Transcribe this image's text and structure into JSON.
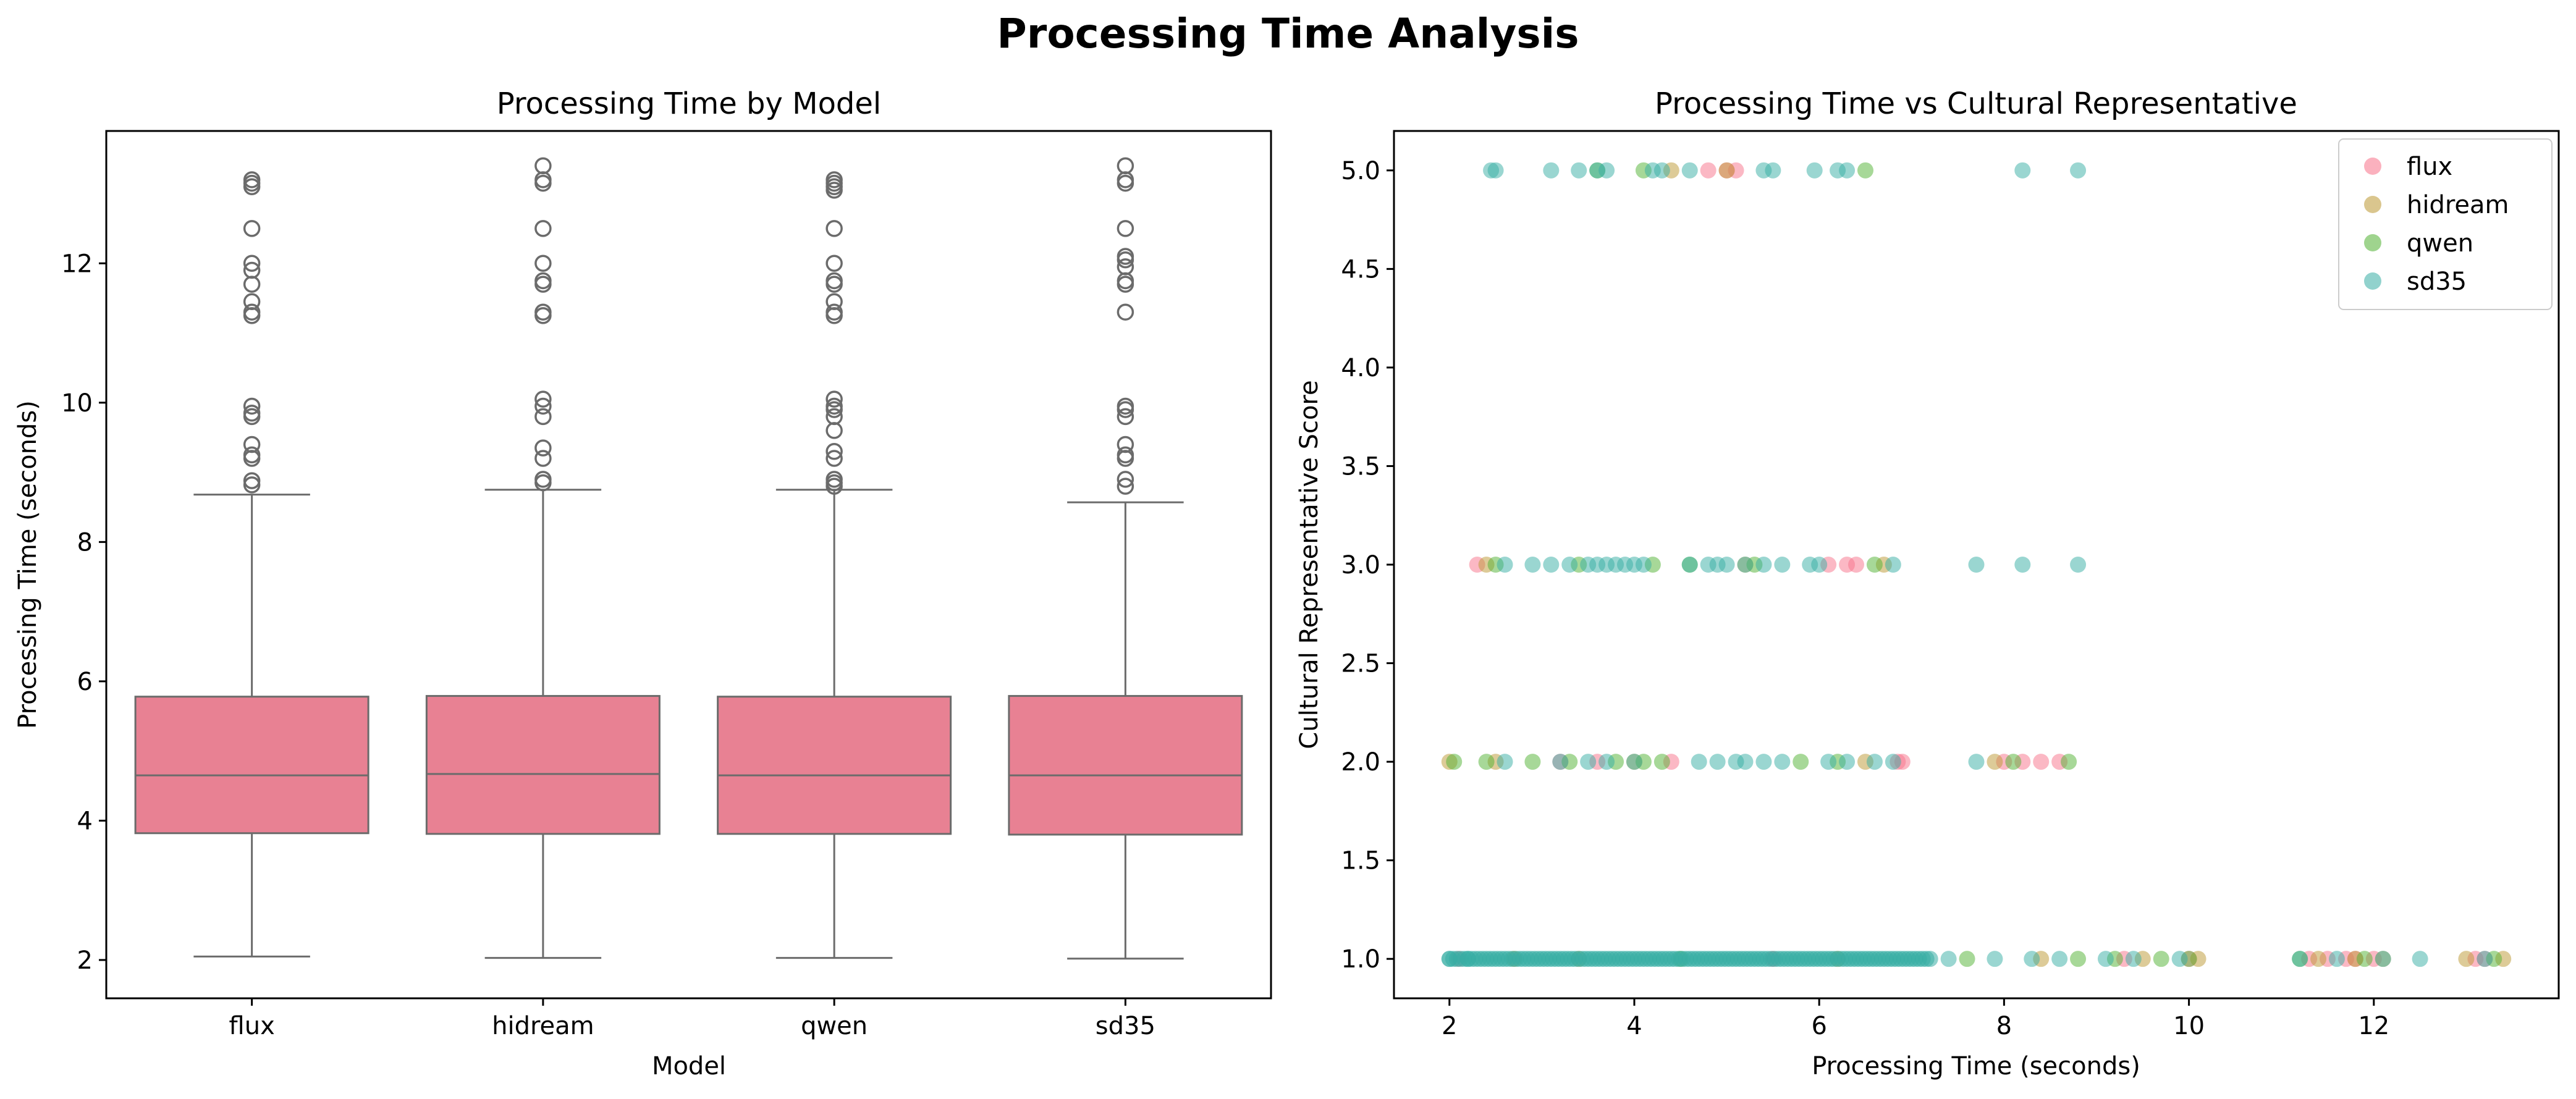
{
  "suptitle": "Processing Time Analysis",
  "colors": {
    "box_fill": "#e88193",
    "box_line": "#6b6b6b",
    "flux": "#f77189",
    "hidream": "#bb9832",
    "qwen": "#50b131",
    "sd35": "#36ada4"
  },
  "chart_data": [
    {
      "type": "box",
      "title": "Processing Time by Model",
      "xlabel": "Model",
      "ylabel": "Processing Time (seconds)",
      "categories": [
        "flux",
        "hidream",
        "qwen",
        "sd35"
      ],
      "ylim": [
        1.45,
        13.9
      ],
      "yticks": [
        2,
        4,
        6,
        8,
        10,
        12
      ],
      "grid": false,
      "boxes": [
        {
          "name": "flux",
          "whisker_low": 2.05,
          "q1": 3.82,
          "median": 4.65,
          "q3": 5.78,
          "whisker_high": 8.68,
          "outliers": [
            8.82,
            8.88,
            9.2,
            9.25,
            9.4,
            9.8,
            9.85,
            9.95,
            11.25,
            11.3,
            11.45,
            11.7,
            11.9,
            12.0,
            12.5,
            13.1,
            13.15,
            13.2
          ]
        },
        {
          "name": "hidream",
          "whisker_low": 2.03,
          "q1": 3.81,
          "median": 4.67,
          "q3": 5.79,
          "whisker_high": 8.75,
          "outliers": [
            8.85,
            8.9,
            9.2,
            9.35,
            9.8,
            9.95,
            10.05,
            11.25,
            11.3,
            11.7,
            11.75,
            12.0,
            12.5,
            13.15,
            13.2,
            13.4
          ]
        },
        {
          "name": "qwen",
          "whisker_low": 2.03,
          "q1": 3.81,
          "median": 4.65,
          "q3": 5.78,
          "whisker_high": 8.75,
          "outliers": [
            8.8,
            8.85,
            8.9,
            9.2,
            9.3,
            9.6,
            9.8,
            9.9,
            9.95,
            10.05,
            11.25,
            11.3,
            11.45,
            11.7,
            11.75,
            12.0,
            12.5,
            13.05,
            13.1,
            13.15,
            13.2
          ]
        },
        {
          "name": "sd35",
          "whisker_low": 2.02,
          "q1": 3.8,
          "median": 4.65,
          "q3": 5.79,
          "whisker_high": 8.57,
          "outliers": [
            8.8,
            8.9,
            9.2,
            9.25,
            9.4,
            9.8,
            9.9,
            9.95,
            11.3,
            11.7,
            11.75,
            11.95,
            12.05,
            12.1,
            12.5,
            13.15,
            13.2,
            13.4
          ]
        }
      ]
    },
    {
      "type": "scatter",
      "title": "Processing Time vs Cultural Representative",
      "xlabel": "Processing Time (seconds)",
      "ylabel": "Cultural Representative Score",
      "xlim": [
        1.4,
        14.0
      ],
      "ylim": [
        0.8,
        5.2
      ],
      "xticks": [
        2,
        4,
        6,
        8,
        10,
        12
      ],
      "yticks": [
        1.0,
        1.5,
        2.0,
        2.5,
        3.0,
        3.5,
        4.0,
        4.5,
        5.0
      ],
      "legend": "top-right",
      "grid": false,
      "series": [
        {
          "name": "flux",
          "color": "#f77189",
          "points": [
            [
              2.3,
              3.0
            ],
            [
              4.8,
              5.0
            ],
            [
              5.0,
              5.0
            ],
            [
              5.1,
              5.0
            ],
            [
              6.1,
              3.0
            ],
            [
              6.3,
              3.0
            ],
            [
              6.4,
              3.0
            ],
            [
              6.9,
              2.0
            ],
            [
              6.85,
              2.0
            ],
            [
              8.0,
              2.0
            ],
            [
              8.2,
              2.0
            ],
            [
              8.4,
              2.0
            ],
            [
              8.6,
              2.0
            ],
            [
              3.2,
              2.0
            ],
            [
              3.6,
              2.0
            ],
            [
              4.4,
              2.0
            ],
            [
              11.3,
              1.0
            ],
            [
              11.5,
              1.0
            ],
            [
              11.7,
              1.0
            ],
            [
              11.8,
              1.0
            ],
            [
              12.0,
              1.0
            ],
            [
              13.1,
              1.0
            ],
            [
              13.2,
              1.0
            ],
            [
              2.1,
              1.0
            ],
            [
              5.5,
              1.0
            ],
            [
              9.3,
              1.0
            ],
            [
              10.0,
              1.0
            ]
          ]
        },
        {
          "name": "hidream",
          "color": "#bb9832",
          "points": [
            [
              2.4,
              3.0
            ],
            [
              4.4,
              5.0
            ],
            [
              5.0,
              5.0
            ],
            [
              6.7,
              3.0
            ],
            [
              2.0,
              2.0
            ],
            [
              2.5,
              2.0
            ],
            [
              4.0,
              2.0
            ],
            [
              6.5,
              2.0
            ],
            [
              7.9,
              2.0
            ],
            [
              5.2,
              3.0
            ],
            [
              2.7,
              1.0
            ],
            [
              3.4,
              1.0
            ],
            [
              6.2,
              1.0
            ],
            [
              8.4,
              1.0
            ],
            [
              9.5,
              1.0
            ],
            [
              10.1,
              1.0
            ],
            [
              11.4,
              1.0
            ],
            [
              11.8,
              1.0
            ],
            [
              12.1,
              1.0
            ],
            [
              13.0,
              1.0
            ],
            [
              13.4,
              1.0
            ]
          ]
        },
        {
          "name": "qwen",
          "color": "#50b131",
          "points": [
            [
              2.05,
              2.0
            ],
            [
              2.4,
              2.0
            ],
            [
              2.9,
              2.0
            ],
            [
              3.3,
              2.0
            ],
            [
              3.8,
              2.0
            ],
            [
              4.1,
              2.0
            ],
            [
              4.3,
              2.0
            ],
            [
              5.8,
              2.0
            ],
            [
              6.2,
              2.0
            ],
            [
              8.1,
              2.0
            ],
            [
              8.7,
              2.0
            ],
            [
              2.5,
              3.0
            ],
            [
              3.4,
              3.0
            ],
            [
              4.2,
              3.0
            ],
            [
              4.6,
              3.0
            ],
            [
              5.3,
              3.0
            ],
            [
              6.6,
              3.0
            ],
            [
              3.6,
              5.0
            ],
            [
              4.1,
              5.0
            ],
            [
              6.5,
              5.0
            ],
            [
              4.5,
              1.0
            ],
            [
              7.6,
              1.0
            ],
            [
              8.8,
              1.0
            ],
            [
              9.2,
              1.0
            ],
            [
              9.7,
              1.0
            ],
            [
              10.0,
              1.0
            ],
            [
              11.2,
              1.0
            ],
            [
              11.9,
              1.0
            ],
            [
              13.3,
              1.0
            ]
          ]
        },
        {
          "name": "sd35",
          "color": "#36ada4",
          "points": [
            [
              2.5,
              5.0
            ],
            [
              2.45,
              5.0
            ],
            [
              3.1,
              5.0
            ],
            [
              3.4,
              5.0
            ],
            [
              3.6,
              5.0
            ],
            [
              3.7,
              5.0
            ],
            [
              4.2,
              5.0
            ],
            [
              4.3,
              5.0
            ],
            [
              4.6,
              5.0
            ],
            [
              5.4,
              5.0
            ],
            [
              5.5,
              5.0
            ],
            [
              5.95,
              5.0
            ],
            [
              6.2,
              5.0
            ],
            [
              6.3,
              5.0
            ],
            [
              8.2,
              5.0
            ],
            [
              8.8,
              5.0
            ],
            [
              2.6,
              3.0
            ],
            [
              2.9,
              3.0
            ],
            [
              3.1,
              3.0
            ],
            [
              3.3,
              3.0
            ],
            [
              3.5,
              3.0
            ],
            [
              3.6,
              3.0
            ],
            [
              3.7,
              3.0
            ],
            [
              3.8,
              3.0
            ],
            [
              3.9,
              3.0
            ],
            [
              4.0,
              3.0
            ],
            [
              4.1,
              3.0
            ],
            [
              4.6,
              3.0
            ],
            [
              4.8,
              3.0
            ],
            [
              4.9,
              3.0
            ],
            [
              5.0,
              3.0
            ],
            [
              5.2,
              3.0
            ],
            [
              5.4,
              3.0
            ],
            [
              5.6,
              3.0
            ],
            [
              5.9,
              3.0
            ],
            [
              6.0,
              3.0
            ],
            [
              6.8,
              3.0
            ],
            [
              7.7,
              3.0
            ],
            [
              8.2,
              3.0
            ],
            [
              8.8,
              3.0
            ],
            [
              2.6,
              2.0
            ],
            [
              3.2,
              2.0
            ],
            [
              3.5,
              2.0
            ],
            [
              3.7,
              2.0
            ],
            [
              4.0,
              2.0
            ],
            [
              4.7,
              2.0
            ],
            [
              4.9,
              2.0
            ],
            [
              5.1,
              2.0
            ],
            [
              5.2,
              2.0
            ],
            [
              5.4,
              2.0
            ],
            [
              5.6,
              2.0
            ],
            [
              6.1,
              2.0
            ],
            [
              6.3,
              2.0
            ],
            [
              6.6,
              2.0
            ],
            [
              6.8,
              2.0
            ],
            [
              7.7,
              2.0
            ],
            [
              2.0,
              1.0
            ],
            [
              2.2,
              1.0
            ],
            [
              7.4,
              1.0
            ],
            [
              7.9,
              1.0
            ],
            [
              8.3,
              1.0
            ],
            [
              8.6,
              1.0
            ],
            [
              9.1,
              1.0
            ],
            [
              9.4,
              1.0
            ],
            [
              9.9,
              1.0
            ],
            [
              11.2,
              1.0
            ],
            [
              11.6,
              1.0
            ],
            [
              12.1,
              1.0
            ],
            [
              12.5,
              1.0
            ],
            [
              13.2,
              1.0
            ]
          ],
          "dense_band": {
            "y": 1.0,
            "x_from": 2.0,
            "x_to": 7.2
          }
        }
      ]
    }
  ]
}
